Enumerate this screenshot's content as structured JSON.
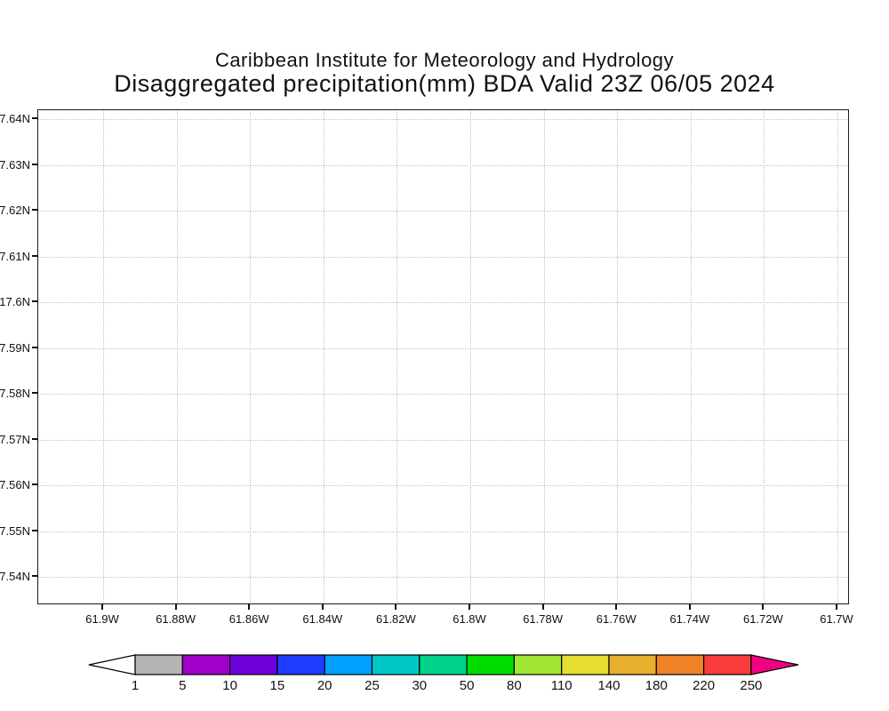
{
  "title": {
    "line1": "Caribbean Institute for Meteorology and Hydrology",
    "line2": "Disaggregated precipitation(mm) BDA Valid 23Z 06/05 2024"
  },
  "chart_data": {
    "type": "heatmap",
    "subtype": "lat-lon precipitation map (GrADS style), shaded field empty",
    "title": "Disaggregated precipitation(mm) BDA Valid 23Z 06/05 2024",
    "subtitle": "Caribbean Institute for Meteorology and Hydrology",
    "grid": true,
    "x_axis": {
      "ticks": [
        "61.9W",
        "61.88W",
        "61.86W",
        "61.84W",
        "61.82W",
        "61.8W",
        "61.78W",
        "61.76W",
        "61.74W",
        "61.72W",
        "61.7W"
      ]
    },
    "y_axis": {
      "ticks": [
        "7.64N",
        "7.63N",
        "7.62N",
        "7.61N",
        "17.6N",
        "7.59N",
        "7.58N",
        "7.57N",
        "7.56N",
        "7.55N",
        "7.54N"
      ]
    },
    "values": [],
    "note": "no precipitation shading or contours plotted inside the map area",
    "colorbar": {
      "labels": [
        "1",
        "5",
        "10",
        "15",
        "20",
        "25",
        "30",
        "50",
        "80",
        "110",
        "140",
        "180",
        "220",
        "250"
      ],
      "colors": [
        "#ffffff",
        "#b4b4b4",
        "#a000c8",
        "#6e00dc",
        "#1e3cff",
        "#00a0ff",
        "#00c8c8",
        "#00d28c",
        "#00dc00",
        "#a0e632",
        "#e6dc32",
        "#e6af2d",
        "#f08228",
        "#fa3c3c",
        "#f00082"
      ],
      "outline_color": "#000000"
    }
  }
}
